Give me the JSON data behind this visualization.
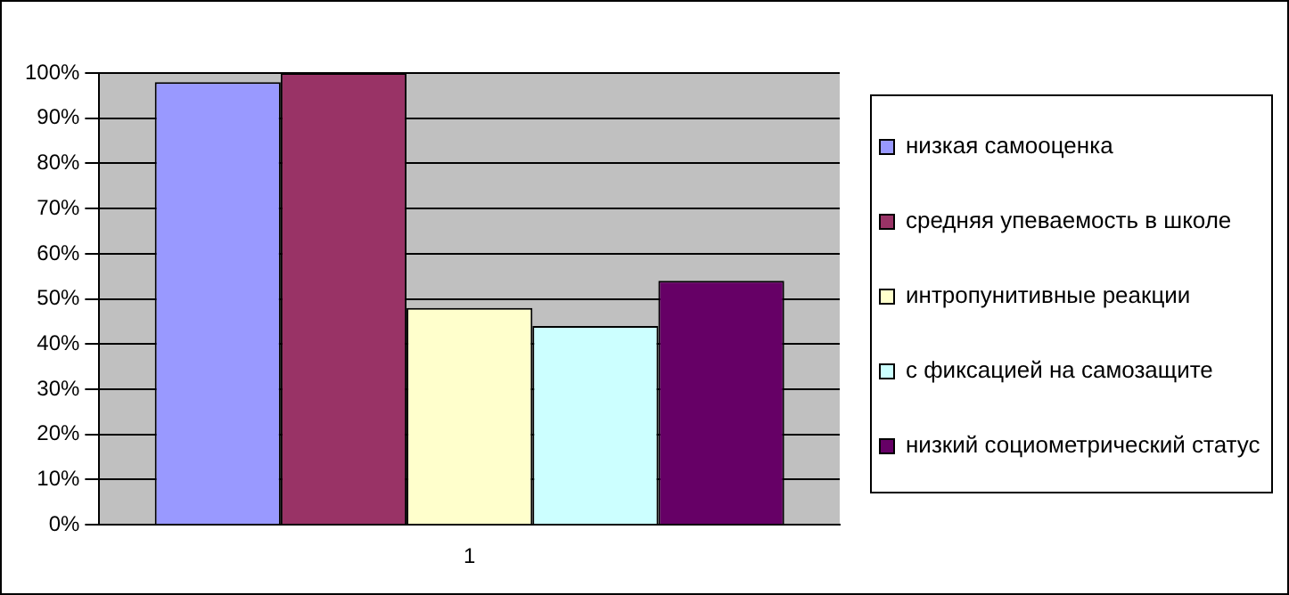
{
  "chart_data": {
    "type": "bar",
    "categories": [
      "1"
    ],
    "series": [
      {
        "name": "низкая самооценка",
        "color": "#9999ff",
        "values": [
          98
        ]
      },
      {
        "name": "средняя упеваемость в школе",
        "color": "#993366",
        "values": [
          100
        ]
      },
      {
        "name": "интропунитивные реакции",
        "color": "#ffffcc",
        "values": [
          48
        ]
      },
      {
        "name": "с фиксацией на самозащите",
        "color": "#ccffff",
        "values": [
          44
        ]
      },
      {
        "name": "низкий социометрический статус",
        "color": "#660066",
        "values": [
          54
        ]
      }
    ],
    "ylim": [
      0,
      100
    ],
    "yticks": [
      {
        "value": 0,
        "label": "0%"
      },
      {
        "value": 10,
        "label": "10%"
      },
      {
        "value": 20,
        "label": "20%"
      },
      {
        "value": 30,
        "label": "30%"
      },
      {
        "value": 40,
        "label": "40%"
      },
      {
        "value": 50,
        "label": "50%"
      },
      {
        "value": 60,
        "label": "60%"
      },
      {
        "value": 70,
        "label": "70%"
      },
      {
        "value": 80,
        "label": "80%"
      },
      {
        "value": 90,
        "label": "90%"
      },
      {
        "value": 100,
        "label": "100%"
      }
    ],
    "grid": "y",
    "legend": "right"
  }
}
